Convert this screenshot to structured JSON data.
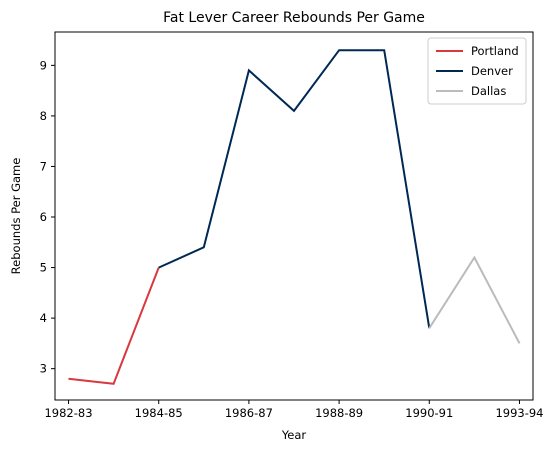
{
  "chart_data": {
    "type": "line",
    "title": "Fat Lever Career Rebounds Per Game",
    "xlabel": "Year",
    "ylabel": "Rebounds Per Game",
    "x_ticks": [
      "1982-83",
      "1984-85",
      "1986-87",
      "1988-89",
      "1990-91",
      "1993-94"
    ],
    "y_ticks": [
      3,
      4,
      5,
      6,
      7,
      8,
      9
    ],
    "xlim": [
      -0.3,
      10.3
    ],
    "ylim": [
      2.38,
      9.66
    ],
    "legend_position": "top-right",
    "grid": false,
    "series": [
      {
        "name": "Portland",
        "color": "#d9383f",
        "points": [
          [
            0,
            2.8
          ],
          [
            1,
            2.7
          ],
          [
            2,
            5.0
          ]
        ]
      },
      {
        "name": "Denver",
        "color": "#002855",
        "points": [
          [
            2,
            5.0
          ],
          [
            3,
            5.4
          ],
          [
            4,
            8.9
          ],
          [
            5,
            8.1
          ],
          [
            6,
            9.3
          ],
          [
            7,
            9.3
          ],
          [
            8,
            3.8
          ]
        ]
      },
      {
        "name": "Dallas",
        "color": "#bbbbbb",
        "points": [
          [
            8,
            3.8
          ],
          [
            9,
            5.2
          ],
          [
            10,
            3.5
          ]
        ]
      }
    ],
    "x_tick_positions": [
      0,
      2,
      4,
      6,
      8,
      10
    ]
  }
}
